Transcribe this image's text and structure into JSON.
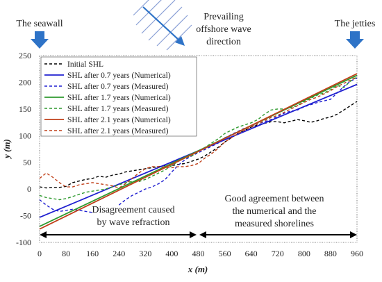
{
  "header": {
    "seawall_label": "The seawall",
    "jetties_label": "The jetties",
    "wave_label_line1": "Prevailing",
    "wave_label_line2": "offshore wave",
    "wave_label_line3": "direction"
  },
  "annotations": {
    "left_line1": "Disagreement caused",
    "left_line2": "by wave refraction",
    "right_line1": "Good agreement between",
    "right_line2": "the numerical and the",
    "right_line3": "measured shorelines"
  },
  "colors": {
    "initial": "#000000",
    "y07": "#1f1fd0",
    "y17": "#2e9a2e",
    "y21": "#c0401a",
    "header_arrow": "#2e73c7",
    "hatch": "#8aa0d6"
  },
  "chart_data": {
    "type": "line",
    "xlabel": "x (m)",
    "ylabel": "y (m)",
    "xlim": [
      0,
      960
    ],
    "ylim": [
      -100,
      250
    ],
    "xticks": [
      0,
      80,
      160,
      240,
      320,
      400,
      480,
      560,
      640,
      720,
      800,
      880,
      960
    ],
    "yticks": [
      -100,
      -50,
      0,
      50,
      100,
      150,
      200,
      250
    ],
    "legend_position": "top-left",
    "series": [
      {
        "name": "Initial SHL",
        "style": "dashed",
        "color": "#000000",
        "x": [
          0,
          20,
          40,
          60,
          80,
          100,
          120,
          140,
          160,
          180,
          200,
          220,
          240,
          260,
          280,
          300,
          320,
          340,
          360,
          380,
          400,
          420,
          440,
          460,
          480,
          500,
          520,
          540,
          560,
          580,
          600,
          620,
          640,
          660,
          680,
          700,
          720,
          740,
          760,
          780,
          800,
          820,
          840,
          860,
          880,
          900,
          920,
          940,
          960
        ],
        "y": [
          4,
          2,
          3,
          3,
          5,
          12,
          15,
          18,
          20,
          24,
          22,
          26,
          28,
          32,
          34,
          36,
          38,
          40,
          42,
          44,
          44,
          46,
          48,
          52,
          56,
          62,
          70,
          78,
          88,
          96,
          104,
          110,
          116,
          120,
          123,
          126,
          126,
          124,
          127,
          130,
          128,
          125,
          128,
          132,
          135,
          140,
          148,
          156,
          164
        ]
      },
      {
        "name": "SHL after 0.7 years (Numerical)",
        "style": "solid",
        "color": "#1f1fd0",
        "x": [
          0,
          960
        ],
        "y": [
          -53,
          196
        ]
      },
      {
        "name": "SHL after 0.7 years (Measured)",
        "style": "dashed",
        "color": "#1f1fd0",
        "x": [
          0,
          20,
          40,
          60,
          80,
          100,
          120,
          140,
          160,
          180,
          200,
          220,
          240,
          260,
          280,
          300,
          320,
          340,
          360,
          380,
          400,
          420,
          440,
          460,
          480,
          500,
          520,
          540,
          560,
          580,
          600,
          620,
          640,
          660,
          680,
          700,
          720,
          740,
          760,
          780,
          800,
          820,
          840,
          860,
          880,
          900,
          920,
          940,
          960
        ],
        "y": [
          -20,
          -30,
          -38,
          -42,
          -40,
          -38,
          -40,
          -42,
          -44,
          null,
          null,
          null,
          -30,
          -20,
          -12,
          -6,
          0,
          4,
          10,
          18,
          32,
          45,
          55,
          62,
          68,
          74,
          80,
          86,
          96,
          102,
          108,
          114,
          118,
          122,
          126,
          130,
          136,
          142,
          146,
          148,
          154,
          158,
          162,
          165,
          168,
          180,
          192,
          202,
          208
        ]
      },
      {
        "name": "SHL after 1.7 years (Numerical)",
        "style": "solid",
        "color": "#2e9a2e",
        "x": [
          0,
          960
        ],
        "y": [
          -70,
          213
        ]
      },
      {
        "name": "SHL after 1.7 years (Measured)",
        "style": "dashed",
        "color": "#2e9a2e",
        "x": [
          0,
          20,
          40,
          60,
          80,
          100,
          120,
          140,
          160,
          180,
          200,
          220,
          240,
          260,
          280,
          300,
          320,
          340,
          360,
          380,
          400,
          420,
          440,
          460,
          480,
          500,
          520,
          540,
          560,
          580,
          600,
          620,
          640,
          660,
          680,
          700,
          720,
          740,
          760,
          780,
          800,
          820,
          840,
          860,
          880,
          900,
          920,
          940,
          960
        ],
        "y": [
          -12,
          -16,
          -18,
          -20,
          -18,
          -14,
          -10,
          -6,
          -4,
          -2,
          0,
          4,
          8,
          12,
          14,
          14,
          18,
          24,
          30,
          36,
          44,
          52,
          58,
          62,
          70,
          78,
          86,
          94,
          104,
          110,
          116,
          120,
          124,
          130,
          140,
          148,
          150,
          150,
          152,
          156,
          164,
          170,
          176,
          180,
          186,
          194,
          190,
          202,
          210
        ]
      },
      {
        "name": "SHL after 2.1 years (Numerical)",
        "style": "solid",
        "color": "#c0401a",
        "x": [
          0,
          960
        ],
        "y": [
          -75,
          216
        ]
      },
      {
        "name": "SHL after 2.1 years (Measured)",
        "style": "dashed",
        "color": "#c0401a",
        "x": [
          0,
          20,
          40,
          60,
          80,
          100,
          120,
          140,
          160,
          180,
          200,
          220,
          240,
          260,
          280,
          300,
          320,
          340,
          360,
          380,
          400,
          420,
          440,
          460,
          480,
          500,
          520,
          540,
          560,
          580,
          600,
          620,
          640,
          660,
          680,
          700,
          720,
          740,
          760,
          780,
          800,
          820,
          840,
          860,
          880,
          900,
          920,
          940,
          960
        ],
        "y": [
          20,
          30,
          22,
          12,
          4,
          4,
          8,
          10,
          12,
          10,
          8,
          6,
          2,
          10,
          20,
          30,
          38,
          42,
          42,
          40,
          40,
          42,
          42,
          44,
          48,
          58,
          66,
          76,
          88,
          96,
          104,
          110,
          116,
          122,
          128,
          134,
          138,
          144,
          150,
          156,
          162,
          168,
          172,
          178,
          184,
          192,
          198,
          204,
          210
        ]
      }
    ]
  }
}
